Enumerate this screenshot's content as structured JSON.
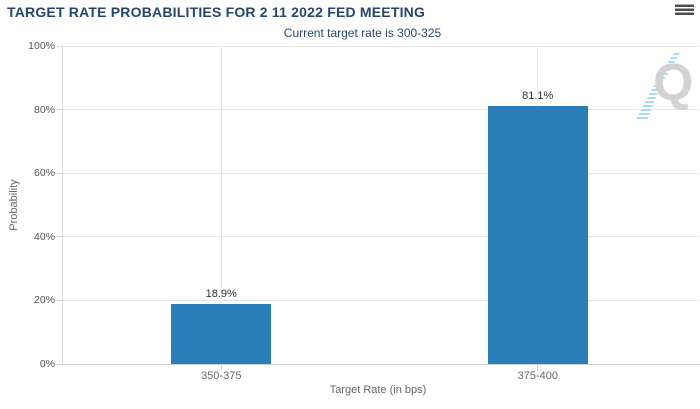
{
  "chart": {
    "menu_icon": "hamburger-export-menu",
    "watermark_letter": "Q"
  },
  "chart_data": {
    "type": "bar",
    "title": "TARGET RATE PROBABILITIES FOR 2 11 2022 FED MEETING",
    "subtitle": "Current target rate is 300-325",
    "xlabel": "Target Rate (in bps)",
    "ylabel": "Probability",
    "categories": [
      "350-375",
      "375-400"
    ],
    "values": [
      18.9,
      81.1
    ],
    "data_labels": [
      "18.9%",
      "81.1%"
    ],
    "ylim": [
      0,
      100
    ],
    "ytick_values": [
      0,
      20,
      40,
      60,
      80,
      100
    ],
    "ytick_labels": [
      "0%",
      "20%",
      "40%",
      "60%",
      "80%",
      "100%"
    ],
    "grid": true,
    "legend": "none",
    "bar_color": "#2A7EB8",
    "title_color": "#26466D",
    "watermark_gray": "#D2D2D2",
    "watermark_blue": "#A8DCF4"
  }
}
